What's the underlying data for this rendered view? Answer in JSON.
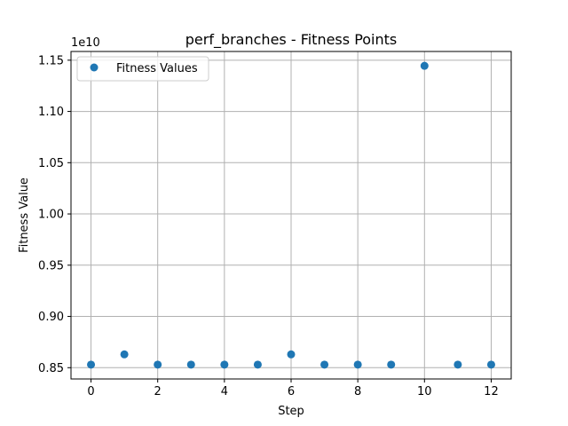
{
  "chart_data": {
    "type": "scatter",
    "title": "perf_branches - Fitness Points",
    "xlabel": "Step",
    "ylabel": "Fitness Value",
    "y_offset_label": "1e10",
    "y_scale": 10000000000,
    "xlim": [
      -0.6,
      12.6
    ],
    "ylim": [
      8390000000.0,
      11585000000.0
    ],
    "x_ticks": [
      0,
      2,
      4,
      6,
      8,
      10,
      12
    ],
    "y_ticks": [
      0.85,
      0.9,
      0.95,
      1.0,
      1.05,
      1.1,
      1.15
    ],
    "grid": true,
    "legend_position": "top-left",
    "series": [
      {
        "name": "Fitness Values",
        "color": "#1f77b4",
        "x": [
          0,
          1,
          2,
          3,
          4,
          5,
          6,
          7,
          8,
          9,
          10,
          11,
          12
        ],
        "y": [
          8530000000.0,
          8630000000.0,
          8530000000.0,
          8530000000.0,
          8530000000.0,
          8530000000.0,
          8630000000.0,
          8530000000.0,
          8530000000.0,
          8530000000.0,
          11445000000.0,
          8530000000.0,
          8530000000.0
        ]
      }
    ]
  }
}
